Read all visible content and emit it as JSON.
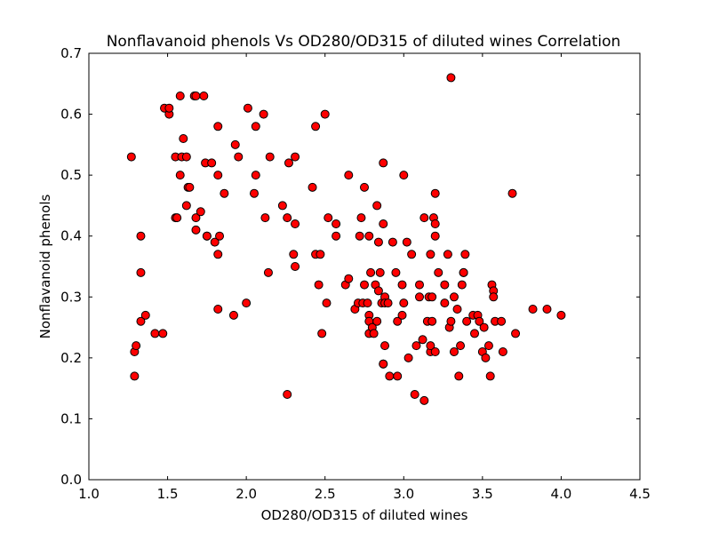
{
  "chart_data": {
    "type": "scatter",
    "title": "Nonflavanoid phenols Vs OD280/OD315 of diluted wines Correlation",
    "xlabel": "OD280/OD315 of diluted wines",
    "ylabel": "Nonflavanoid phenols",
    "xlim": [
      1.0,
      4.5
    ],
    "ylim": [
      0.0,
      0.7
    ],
    "x_ticks": [
      "1.0",
      "1.5",
      "2.0",
      "2.5",
      "3.0",
      "3.5",
      "4.0",
      "4.5"
    ],
    "y_ticks": [
      "0.0",
      "0.1",
      "0.2",
      "0.3",
      "0.4",
      "0.5",
      "0.6",
      "0.7"
    ],
    "grid": false,
    "marker_color": "#ff0000",
    "marker_edge_color": "#000000",
    "points": [
      [
        1.27,
        0.53
      ],
      [
        1.29,
        0.17
      ],
      [
        1.29,
        0.21
      ],
      [
        1.3,
        0.22
      ],
      [
        1.33,
        0.4
      ],
      [
        1.33,
        0.34
      ],
      [
        1.33,
        0.26
      ],
      [
        1.36,
        0.27
      ],
      [
        1.42,
        0.24
      ],
      [
        1.47,
        0.24
      ],
      [
        1.48,
        0.61
      ],
      [
        1.51,
        0.6
      ],
      [
        1.51,
        0.61
      ],
      [
        1.55,
        0.53
      ],
      [
        1.55,
        0.43
      ],
      [
        1.56,
        0.43
      ],
      [
        1.58,
        0.63
      ],
      [
        1.58,
        0.5
      ],
      [
        1.59,
        0.53
      ],
      [
        1.6,
        0.56
      ],
      [
        1.62,
        0.53
      ],
      [
        1.62,
        0.45
      ],
      [
        1.63,
        0.48
      ],
      [
        1.64,
        0.48
      ],
      [
        1.67,
        0.63
      ],
      [
        1.68,
        0.63
      ],
      [
        1.68,
        0.43
      ],
      [
        1.68,
        0.41
      ],
      [
        1.71,
        0.44
      ],
      [
        1.73,
        0.63
      ],
      [
        1.74,
        0.52
      ],
      [
        1.75,
        0.4
      ],
      [
        1.75,
        0.4
      ],
      [
        1.78,
        0.52
      ],
      [
        1.8,
        0.39
      ],
      [
        1.82,
        0.58
      ],
      [
        1.82,
        0.5
      ],
      [
        1.82,
        0.37
      ],
      [
        1.82,
        0.28
      ],
      [
        1.83,
        0.4
      ],
      [
        1.86,
        0.47
      ],
      [
        1.92,
        0.27
      ],
      [
        1.93,
        0.55
      ],
      [
        1.95,
        0.53
      ],
      [
        2.0,
        0.29
      ],
      [
        2.01,
        0.61
      ],
      [
        2.05,
        0.47
      ],
      [
        2.06,
        0.5
      ],
      [
        2.06,
        0.58
      ],
      [
        2.11,
        0.6
      ],
      [
        2.12,
        0.43
      ],
      [
        2.14,
        0.34
      ],
      [
        2.15,
        0.53
      ],
      [
        2.23,
        0.45
      ],
      [
        2.26,
        0.43
      ],
      [
        2.26,
        0.14
      ],
      [
        2.27,
        0.52
      ],
      [
        2.3,
        0.37
      ],
      [
        2.31,
        0.53
      ],
      [
        2.31,
        0.42
      ],
      [
        2.31,
        0.35
      ],
      [
        2.42,
        0.48
      ],
      [
        2.44,
        0.58
      ],
      [
        2.44,
        0.37
      ],
      [
        2.46,
        0.32
      ],
      [
        2.47,
        0.37
      ],
      [
        2.48,
        0.24
      ],
      [
        2.5,
        0.6
      ],
      [
        2.51,
        0.29
      ],
      [
        2.52,
        0.43
      ],
      [
        2.57,
        0.42
      ],
      [
        2.57,
        0.4
      ],
      [
        2.63,
        0.32
      ],
      [
        2.65,
        0.5
      ],
      [
        2.65,
        0.33
      ],
      [
        2.69,
        0.28
      ],
      [
        2.71,
        0.29
      ],
      [
        2.72,
        0.4
      ],
      [
        2.73,
        0.43
      ],
      [
        2.74,
        0.29
      ],
      [
        2.75,
        0.48
      ],
      [
        2.75,
        0.32
      ],
      [
        2.77,
        0.29
      ],
      [
        2.78,
        0.27
      ],
      [
        2.78,
        0.24
      ],
      [
        2.78,
        0.4
      ],
      [
        2.78,
        0.26
      ],
      [
        2.79,
        0.34
      ],
      [
        2.8,
        0.25
      ],
      [
        2.81,
        0.24
      ],
      [
        2.82,
        0.32
      ],
      [
        2.83,
        0.26
      ],
      [
        2.83,
        0.45
      ],
      [
        2.84,
        0.39
      ],
      [
        2.84,
        0.31
      ],
      [
        2.85,
        0.34
      ],
      [
        2.86,
        0.29
      ],
      [
        2.87,
        0.19
      ],
      [
        2.87,
        0.19
      ],
      [
        2.87,
        0.42
      ],
      [
        2.87,
        0.52
      ],
      [
        2.88,
        0.22
      ],
      [
        2.88,
        0.3
      ],
      [
        2.88,
        0.29
      ],
      [
        2.9,
        0.29
      ],
      [
        2.91,
        0.17
      ],
      [
        2.93,
        0.39
      ],
      [
        2.95,
        0.34
      ],
      [
        2.96,
        0.26
      ],
      [
        2.96,
        0.17
      ],
      [
        2.99,
        0.27
      ],
      [
        2.99,
        0.32
      ],
      [
        3.0,
        0.29
      ],
      [
        3.0,
        0.5
      ],
      [
        3.02,
        0.39
      ],
      [
        3.03,
        0.2
      ],
      [
        3.05,
        0.37
      ],
      [
        3.07,
        0.14
      ],
      [
        3.08,
        0.22
      ],
      [
        3.1,
        0.3
      ],
      [
        3.1,
        0.32
      ],
      [
        3.12,
        0.23
      ],
      [
        3.13,
        0.13
      ],
      [
        3.13,
        0.43
      ],
      [
        3.15,
        0.26
      ],
      [
        3.16,
        0.3
      ],
      [
        3.17,
        0.37
      ],
      [
        3.17,
        0.21
      ],
      [
        3.17,
        0.22
      ],
      [
        3.18,
        0.3
      ],
      [
        3.18,
        0.26
      ],
      [
        3.19,
        0.43
      ],
      [
        3.2,
        0.47
      ],
      [
        3.2,
        0.42
      ],
      [
        3.2,
        0.21
      ],
      [
        3.2,
        0.4
      ],
      [
        3.22,
        0.34
      ],
      [
        3.26,
        0.32
      ],
      [
        3.26,
        0.29
      ],
      [
        3.28,
        0.37
      ],
      [
        3.29,
        0.25
      ],
      [
        3.3,
        0.66
      ],
      [
        3.3,
        0.26
      ],
      [
        3.32,
        0.3
      ],
      [
        3.32,
        0.21
      ],
      [
        3.34,
        0.28
      ],
      [
        3.35,
        0.17
      ],
      [
        3.36,
        0.22
      ],
      [
        3.37,
        0.32
      ],
      [
        3.38,
        0.34
      ],
      [
        3.38,
        0.34
      ],
      [
        3.39,
        0.37
      ],
      [
        3.4,
        0.26
      ],
      [
        3.44,
        0.27
      ],
      [
        3.45,
        0.24
      ],
      [
        3.47,
        0.27
      ],
      [
        3.48,
        0.26
      ],
      [
        3.5,
        0.21
      ],
      [
        3.51,
        0.25
      ],
      [
        3.52,
        0.2
      ],
      [
        3.54,
        0.22
      ],
      [
        3.55,
        0.17
      ],
      [
        3.56,
        0.32
      ],
      [
        3.57,
        0.31
      ],
      [
        3.57,
        0.3
      ],
      [
        3.58,
        0.26
      ],
      [
        3.62,
        0.26
      ],
      [
        3.63,
        0.21
      ],
      [
        3.69,
        0.47
      ],
      [
        3.71,
        0.24
      ],
      [
        3.82,
        0.28
      ],
      [
        3.91,
        0.28
      ],
      [
        4.0,
        0.27
      ]
    ]
  }
}
